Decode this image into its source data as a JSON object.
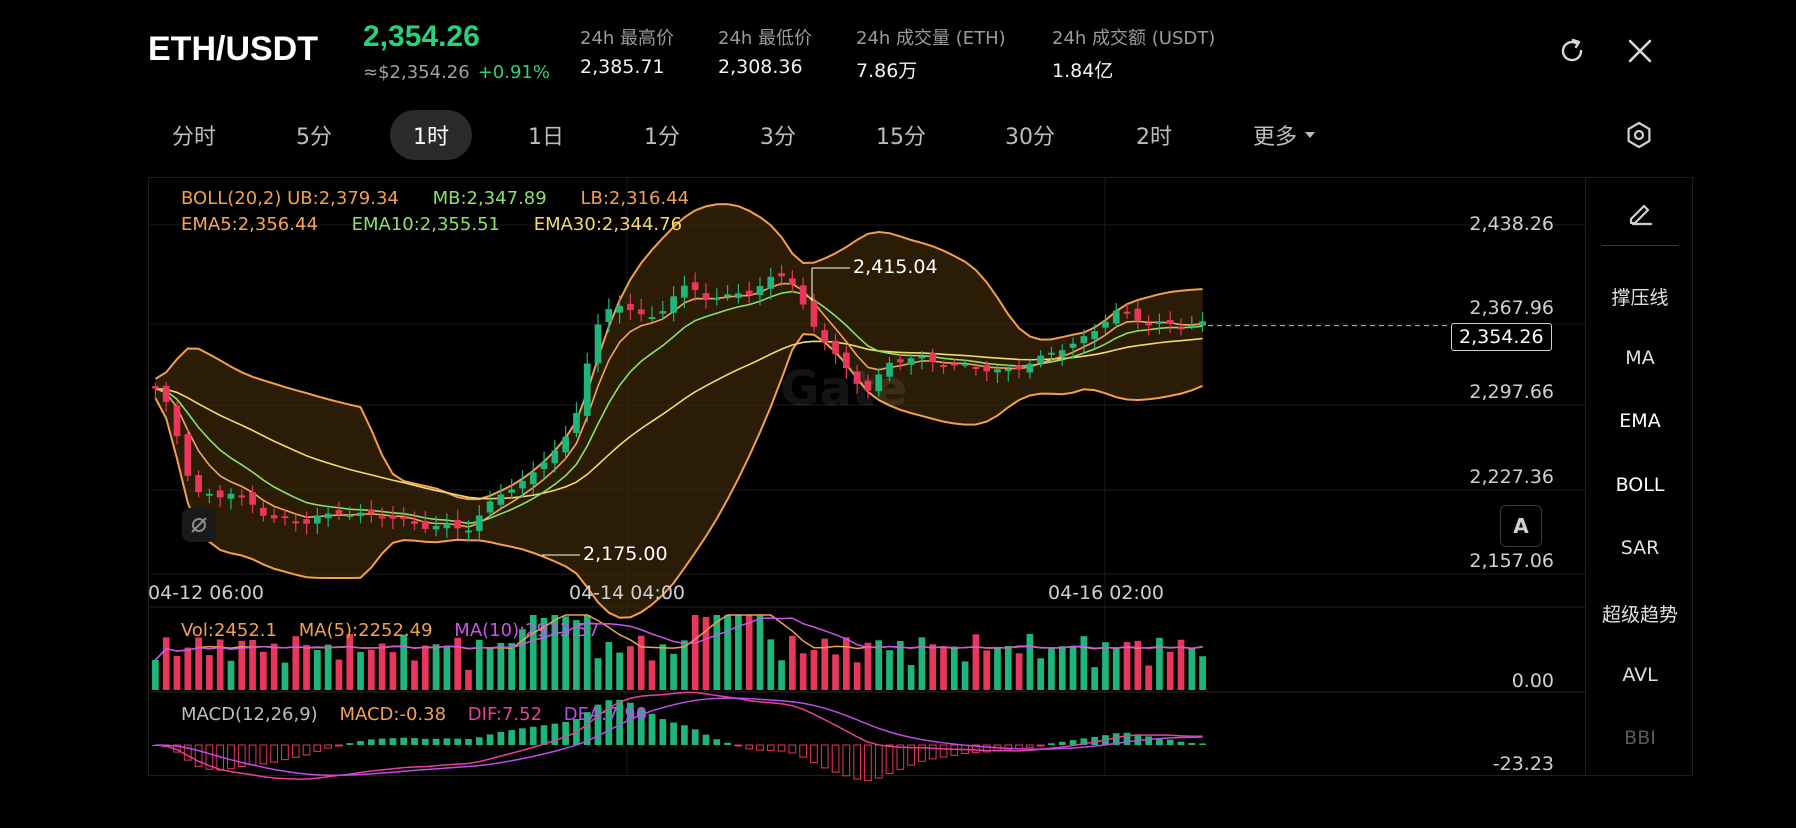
{
  "header": {
    "pair": "ETH/USDT",
    "price": "2,354.26",
    "price_usd": "≈$2,354.26",
    "change": "+0.91%",
    "stats": [
      {
        "label": "24h 最高价",
        "value": "2,385.71"
      },
      {
        "label": "24h 最低价",
        "value": "2,308.36"
      },
      {
        "label": "24h 成交量 (ETH)",
        "value": "7.86万"
      },
      {
        "label": "24h 成交额 (USDT)",
        "value": "1.84亿"
      }
    ],
    "icons": [
      "refresh-icon",
      "close-icon"
    ]
  },
  "tabs": {
    "items": [
      "分时",
      "5分",
      "1时",
      "1日",
      "1分",
      "3分",
      "15分",
      "30分",
      "2时",
      "更多"
    ],
    "active": "1时",
    "settings_icon": "settings-hexagon-icon"
  },
  "indicators": {
    "boll": {
      "label": "BOLL(20,2)",
      "ub": "UB:2,379.34",
      "mb": "MB:2,347.89",
      "lb": "LB:2,316.44"
    },
    "ema": {
      "ema5": "EMA5:2,356.44",
      "ema10": "EMA10:2,355.51",
      "ema30": "EMA30:2,344.76"
    },
    "vol": {
      "vol": "Vol:2452.1",
      "ma5": "MA(5):2252.49",
      "ma10": "MA(10):2973.57"
    },
    "macd": {
      "label": "MACD(12,26,9)",
      "macd": "MACD:-0.38",
      "dif": "DIF:7.52",
      "dea": "DEA:7.90"
    }
  },
  "price_axis": [
    "2,438.26",
    "2,367.96",
    "2,297.66",
    "2,227.36",
    "2,157.06"
  ],
  "vol_axis": "0.00",
  "macd_axis": "-23.23",
  "time_axis": [
    "04-12 06:00",
    "04-14 04:00",
    "04-16 02:00"
  ],
  "annotations": {
    "high": "2,415.04",
    "low": "2,175.00",
    "last": "2,354.26",
    "auto_button": "A"
  },
  "sidebar": {
    "draw_icon": "pencil-icon",
    "items": [
      "撑压线",
      "MA",
      "EMA",
      "BOLL",
      "SAR",
      "超级趋势",
      "AVL",
      "BBI"
    ]
  },
  "colors": {
    "up": "#1fb57a",
    "down": "#e8365d",
    "boll": "#f0a050",
    "ema5": "#f5a55a",
    "ema10": "#8be06a",
    "ema30": "#f5d86a",
    "vol_ma10": "#c855e8",
    "macd_dif": "#e8409a",
    "macd_dea": "#b94ee8"
  },
  "chart_data": {
    "type": "candlestick",
    "interval": "1时",
    "price_range": [
      2157.06,
      2438.26
    ],
    "close_path": [
      2300,
      2285,
      2255,
      2218,
      2213,
      2211,
      2214,
      2209,
      2203,
      2198,
      2193,
      2190,
      2189,
      2194,
      2196,
      2202,
      2198,
      2195,
      2196,
      2193,
      2192,
      2190,
      2188,
      2186,
      2185,
      2183,
      2195,
      2210,
      2220,
      2218,
      2225,
      2240,
      2250,
      2262,
      2290,
      2345,
      2360,
      2372,
      2370,
      2363,
      2362,
      2372,
      2382,
      2385,
      2380,
      2378,
      2380,
      2384,
      2378,
      2389,
      2400,
      2393,
      2370,
      2350,
      2338,
      2320,
      2310,
      2302,
      2313,
      2323,
      2325,
      2327,
      2324,
      2326,
      2323,
      2320,
      2318,
      2316,
      2315,
      2320,
      2325,
      2327,
      2330,
      2336,
      2340,
      2348,
      2360,
      2366,
      2362,
      2358,
      2355,
      2357,
      2356,
      2355,
      2354
    ],
    "high": 2415.04,
    "low": 2175.0,
    "last": 2354.26
  }
}
